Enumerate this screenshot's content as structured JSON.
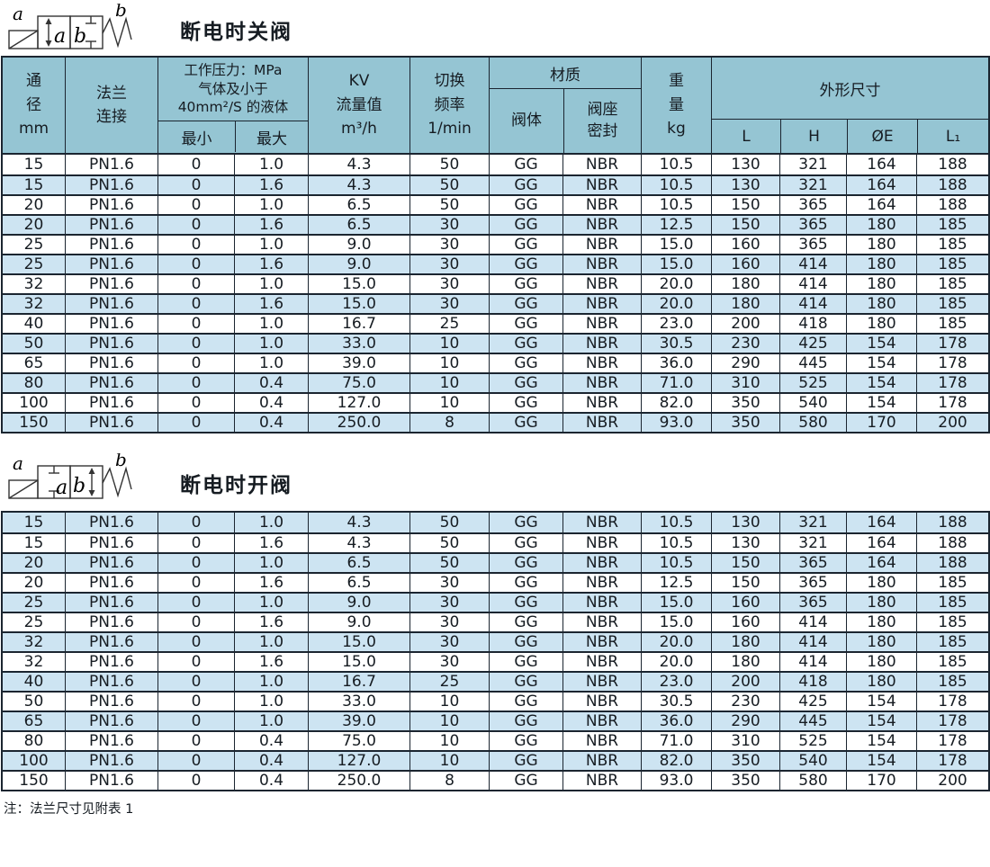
{
  "colors": {
    "header_bg": "#95c5d3",
    "alt_row_bg": "#cde4f2",
    "border": "#1b2530"
  },
  "section1": {
    "title": "断电时关阀",
    "symbol": {
      "label_a": "a",
      "label_b": "b",
      "box_a": "a",
      "box_b": "b"
    }
  },
  "section2": {
    "title": "断电时开阀",
    "symbol": {
      "label_a": "a",
      "label_b": "b",
      "box_a": "a",
      "box_b": "b"
    }
  },
  "header": {
    "diameter": {
      "l1": "通",
      "l2": "径",
      "l3": "mm"
    },
    "flange": {
      "l1": "法兰",
      "l2": "连接"
    },
    "pressure": {
      "t1": "工作压力：MPa",
      "t2": "气体及小于",
      "t3": "40mm²/S 的液体",
      "min": "最小",
      "max": "最大"
    },
    "kv": {
      "l1": "KV",
      "l2": "流量值",
      "l3": "m³/h"
    },
    "frequency": {
      "l1": "切换",
      "l2": "频率",
      "l3": "1/min"
    },
    "material": {
      "title": "材质",
      "body": "阀体",
      "seat_l1": "阀座",
      "seat_l2": "密封"
    },
    "weight": {
      "l1": "重",
      "l2": "量",
      "l3": "kg"
    },
    "dimensions": {
      "title": "外形尺寸",
      "c1": "L",
      "c2": "H",
      "c3": "ØE",
      "c4": "L₁"
    }
  },
  "table1_rows": [
    [
      "15",
      "PN1.6",
      "0",
      "1.0",
      "4.3",
      "50",
      "GG",
      "NBR",
      "10.5",
      "130",
      "321",
      "164",
      "188"
    ],
    [
      "15",
      "PN1.6",
      "0",
      "1.6",
      "4.3",
      "50",
      "GG",
      "NBR",
      "10.5",
      "130",
      "321",
      "164",
      "188"
    ],
    [
      "20",
      "PN1.6",
      "0",
      "1.0",
      "6.5",
      "50",
      "GG",
      "NBR",
      "10.5",
      "150",
      "365",
      "164",
      "188"
    ],
    [
      "20",
      "PN1.6",
      "0",
      "1.6",
      "6.5",
      "30",
      "GG",
      "NBR",
      "12.5",
      "150",
      "365",
      "180",
      "185"
    ],
    [
      "25",
      "PN1.6",
      "0",
      "1.0",
      "9.0",
      "30",
      "GG",
      "NBR",
      "15.0",
      "160",
      "365",
      "180",
      "185"
    ],
    [
      "25",
      "PN1.6",
      "0",
      "1.6",
      "9.0",
      "30",
      "GG",
      "NBR",
      "15.0",
      "160",
      "414",
      "180",
      "185"
    ],
    [
      "32",
      "PN1.6",
      "0",
      "1.0",
      "15.0",
      "30",
      "GG",
      "NBR",
      "20.0",
      "180",
      "414",
      "180",
      "185"
    ],
    [
      "32",
      "PN1.6",
      "0",
      "1.6",
      "15.0",
      "30",
      "GG",
      "NBR",
      "20.0",
      "180",
      "414",
      "180",
      "185"
    ],
    [
      "40",
      "PN1.6",
      "0",
      "1.0",
      "16.7",
      "25",
      "GG",
      "NBR",
      "23.0",
      "200",
      "418",
      "180",
      "185"
    ],
    [
      "50",
      "PN1.6",
      "0",
      "1.0",
      "33.0",
      "10",
      "GG",
      "NBR",
      "30.5",
      "230",
      "425",
      "154",
      "178"
    ],
    [
      "65",
      "PN1.6",
      "0",
      "1.0",
      "39.0",
      "10",
      "GG",
      "NBR",
      "36.0",
      "290",
      "445",
      "154",
      "178"
    ],
    [
      "80",
      "PN1.6",
      "0",
      "0.4",
      "75.0",
      "10",
      "GG",
      "NBR",
      "71.0",
      "310",
      "525",
      "154",
      "178"
    ],
    [
      "100",
      "PN1.6",
      "0",
      "0.4",
      "127.0",
      "10",
      "GG",
      "NBR",
      "82.0",
      "350",
      "540",
      "154",
      "178"
    ],
    [
      "150",
      "PN1.6",
      "0",
      "0.4",
      "250.0",
      "8",
      "GG",
      "NBR",
      "93.0",
      "350",
      "580",
      "170",
      "200"
    ]
  ],
  "table2_rows": [
    [
      "15",
      "PN1.6",
      "0",
      "1.0",
      "4.3",
      "50",
      "GG",
      "NBR",
      "10.5",
      "130",
      "321",
      "164",
      "188"
    ],
    [
      "15",
      "PN1.6",
      "0",
      "1.6",
      "4.3",
      "50",
      "GG",
      "NBR",
      "10.5",
      "130",
      "321",
      "164",
      "188"
    ],
    [
      "20",
      "PN1.6",
      "0",
      "1.0",
      "6.5",
      "50",
      "GG",
      "NBR",
      "10.5",
      "150",
      "365",
      "164",
      "188"
    ],
    [
      "20",
      "PN1.6",
      "0",
      "1.6",
      "6.5",
      "30",
      "GG",
      "NBR",
      "12.5",
      "150",
      "365",
      "180",
      "185"
    ],
    [
      "25",
      "PN1.6",
      "0",
      "1.0",
      "9.0",
      "30",
      "GG",
      "NBR",
      "15.0",
      "160",
      "365",
      "180",
      "185"
    ],
    [
      "25",
      "PN1.6",
      "0",
      "1.6",
      "9.0",
      "30",
      "GG",
      "NBR",
      "15.0",
      "160",
      "414",
      "180",
      "185"
    ],
    [
      "32",
      "PN1.6",
      "0",
      "1.0",
      "15.0",
      "30",
      "GG",
      "NBR",
      "20.0",
      "180",
      "414",
      "180",
      "185"
    ],
    [
      "32",
      "PN1.6",
      "0",
      "1.6",
      "15.0",
      "30",
      "GG",
      "NBR",
      "20.0",
      "180",
      "414",
      "180",
      "185"
    ],
    [
      "40",
      "PN1.6",
      "0",
      "1.0",
      "16.7",
      "25",
      "GG",
      "NBR",
      "23.0",
      "200",
      "418",
      "180",
      "185"
    ],
    [
      "50",
      "PN1.6",
      "0",
      "1.0",
      "33.0",
      "10",
      "GG",
      "NBR",
      "30.5",
      "230",
      "425",
      "154",
      "178"
    ],
    [
      "65",
      "PN1.6",
      "0",
      "1.0",
      "39.0",
      "10",
      "GG",
      "NBR",
      "36.0",
      "290",
      "445",
      "154",
      "178"
    ],
    [
      "80",
      "PN1.6",
      "0",
      "0.4",
      "75.0",
      "10",
      "GG",
      "NBR",
      "71.0",
      "310",
      "525",
      "154",
      "178"
    ],
    [
      "100",
      "PN1.6",
      "0",
      "0.4",
      "127.0",
      "10",
      "GG",
      "NBR",
      "82.0",
      "350",
      "540",
      "154",
      "178"
    ],
    [
      "150",
      "PN1.6",
      "0",
      "0.4",
      "250.0",
      "8",
      "GG",
      "NBR",
      "93.0",
      "350",
      "580",
      "170",
      "200"
    ]
  ],
  "note": "注：法兰尺寸见附表 1"
}
